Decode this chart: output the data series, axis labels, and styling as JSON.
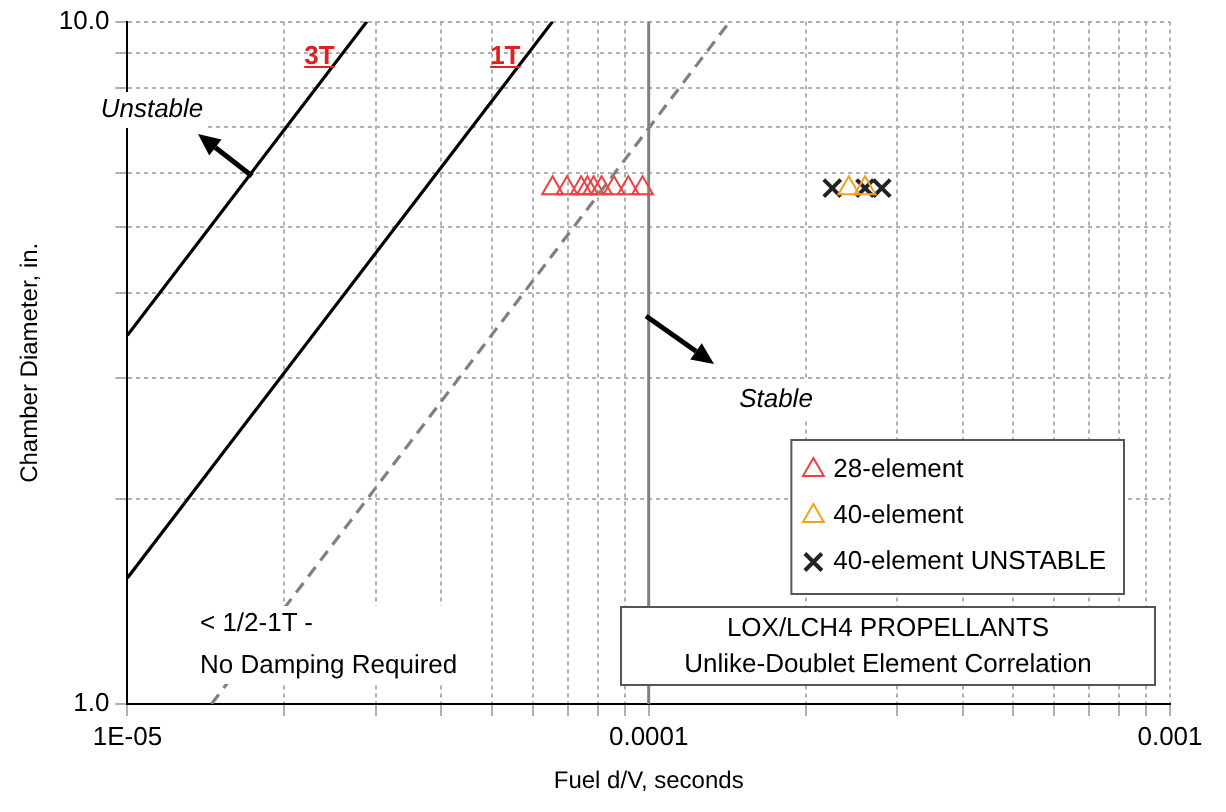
{
  "chart_data": {
    "type": "scatter",
    "xlabel": "Fuel d/V, seconds",
    "ylabel": "Chamber Diameter, in.",
    "log": "xy",
    "xlim": [
      1e-05,
      0.001
    ],
    "ylim": [
      1,
      10
    ],
    "xticks": [
      {
        "value": 1e-05,
        "label": "1E-05"
      },
      {
        "value": 2e-05,
        "label": null
      },
      {
        "value": 3e-05,
        "label": null
      },
      {
        "value": 4e-05,
        "label": null
      },
      {
        "value": 5e-05,
        "label": null
      },
      {
        "value": 6e-05,
        "label": null
      },
      {
        "value": 7e-05,
        "label": null
      },
      {
        "value": 8e-05,
        "label": null
      },
      {
        "value": 9e-05,
        "label": null
      },
      0.0001,
      {
        "value": 0.0002,
        "label": null
      },
      {
        "value": 0.0003,
        "label": null
      },
      {
        "value": 0.0004,
        "label": null
      },
      {
        "value": 0.0005,
        "label": null
      },
      {
        "value": 0.0006,
        "label": null
      },
      {
        "value": 0.0007,
        "label": null
      },
      {
        "value": 0.0008,
        "label": null
      },
      {
        "value": 0.0009,
        "label": null
      },
      0.001
    ],
    "yticks": [
      {
        "value": 1,
        "label": "1.0"
      },
      {
        "value": 2,
        "label": null
      },
      {
        "value": 3,
        "label": null
      },
      {
        "value": 4,
        "label": null
      },
      {
        "value": 5,
        "label": null
      },
      {
        "value": 6,
        "label": null
      },
      {
        "value": 7,
        "label": null
      },
      {
        "value": 8,
        "label": null
      },
      {
        "value": 9,
        "label": null
      },
      {
        "value": 10,
        "label": "10.0"
      }
    ],
    "grid": true,
    "legend": "bottom right",
    "series": [
      {
        "type": "line",
        "color": "#000000",
        "marker": "none",
        "line_style": "solid",
        "x": [
          1e-05,
          2.88e-05
        ],
        "values": [
          3.47,
          10
        ]
      },
      {
        "type": "line",
        "color": "#000000",
        "marker": "none",
        "line_style": "solid",
        "x": [
          1e-05,
          6.54e-05
        ],
        "values": [
          1.53,
          10
        ]
      },
      {
        "type": "line",
        "color": "#808080",
        "marker": "none",
        "line_style": "dashed",
        "x": [
          1.45e-05,
          0.000143
        ],
        "values": [
          1,
          10
        ]
      },
      {
        "name": "28-element",
        "type": "scatter",
        "color": "#f04040",
        "marker": "triangle",
        "x": [
          6.54e-05,
          6.97e-05,
          7.42e-05,
          7.63e-05,
          7.84e-05,
          8.12e-05,
          8.58e-05,
          9.14e-05,
          9.73e-05
        ],
        "values": [
          5.7,
          5.7,
          5.7,
          5.7,
          5.7,
          5.7,
          5.7,
          5.7,
          5.7
        ]
      },
      {
        "name": "40-element",
        "type": "scatter",
        "color": "#f5a020",
        "marker": "triangle",
        "x": [
          0.000242,
          0.00026
        ],
        "values": [
          5.7,
          5.7
        ]
      },
      {
        "name": "40-element UNSTABLE",
        "type": "scatter",
        "color": "#222222",
        "marker": "cross",
        "x": [
          0.000225,
          0.00026,
          0.00028
        ],
        "values": [
          5.7,
          5.7,
          5.7
        ]
      }
    ],
    "ref_lines": [
      {
        "axis": "x",
        "value": 0.0001,
        "color": "#808080"
      }
    ],
    "annotations": [
      "Unstable",
      "Stable",
      "< 1/2-1T -\nNo Damping Required",
      "LOX/LCH4 PROPELLANTS\nUnlike-Doublet Element Correlation",
      {
        "text": "3T",
        "x": 2.56e-05,
        "y": 8.9
      },
      {
        "text": "1T",
        "x": 5.82e-05,
        "y": 8.9
      }
    ]
  }
}
